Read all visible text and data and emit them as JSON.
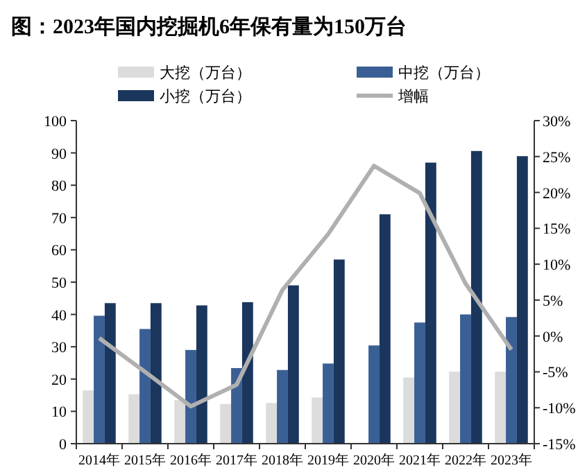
{
  "chart_data": {
    "type": "bar",
    "title": "图：2023年国内挖掘机6年保有量为150万台",
    "categories": [
      "2014年",
      "2015年",
      "2016年",
      "2017年",
      "2018年",
      "2019年",
      "2020年",
      "2021年",
      "2022年",
      "2023年"
    ],
    "series": [
      {
        "name": "大挖（万台）",
        "color": "#dcdcdc",
        "values": [
          16.5,
          15.3,
          13.5,
          12.3,
          12.6,
          14.3,
          null,
          20.5,
          22.3,
          22.3
        ]
      },
      {
        "name": "中挖（万台）",
        "color": "#3a5f94",
        "values": [
          39.6,
          35.5,
          29,
          23.4,
          22.8,
          24.8,
          30.4,
          37.5,
          40,
          39.2
        ]
      },
      {
        "name": "小挖（万台）",
        "color": "#1a365d",
        "values": [
          43.5,
          43.5,
          42.8,
          43.8,
          49,
          57,
          71,
          87,
          90.6,
          89
        ]
      },
      {
        "name": "增幅",
        "type": "line",
        "axis": "y2",
        "color": "#b0b0b0",
        "values": [
          -0.3,
          -5,
          -9.8,
          -6.8,
          6.4,
          14.2,
          23.7,
          19.9,
          7.3,
          -1.9
        ]
      }
    ],
    "ylim": [
      0,
      100
    ],
    "yticks": [
      0,
      10,
      20,
      30,
      40,
      50,
      60,
      70,
      80,
      90,
      100
    ],
    "y2lim": [
      -15,
      30
    ],
    "y2ticks": [
      {
        "value": -15,
        "label": "-15%"
      },
      {
        "value": -10,
        "label": "-10%"
      },
      {
        "value": -5,
        "label": "-5%"
      },
      {
        "value": 0,
        "label": "0%"
      },
      {
        "value": 5,
        "label": "5%"
      },
      {
        "value": 10,
        "label": "10%"
      },
      {
        "value": 15,
        "label": "15%"
      },
      {
        "value": 20,
        "label": "20%"
      },
      {
        "value": 25,
        "label": "25%"
      },
      {
        "value": 30,
        "label": "30%"
      }
    ],
    "legend": "top",
    "grid": false
  }
}
